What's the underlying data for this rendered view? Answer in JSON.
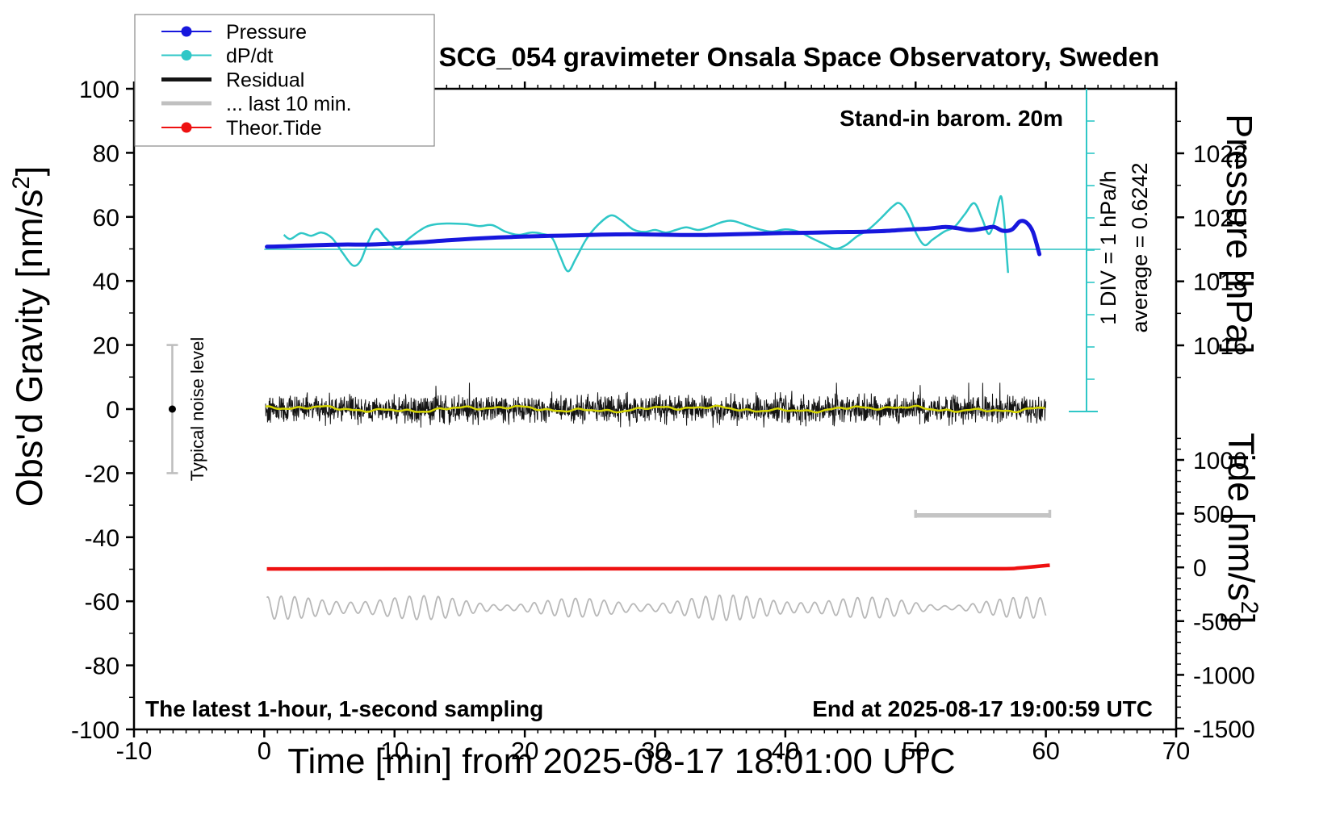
{
  "figure": {
    "background": "#ffffff"
  },
  "title": "SCG_054 gravimeter Onsala Space Observatory, Sweden",
  "annotations": {
    "stand_in": "Stand-in barom. 20m",
    "bottom_left": "The latest 1-hour, 1-second sampling",
    "bottom_right": "End at 2025-08-17 19:00:59 UTC",
    "noise_label": "Typical noise level"
  },
  "legend": {
    "items": [
      {
        "label": "Pressure",
        "color": "#1717dd",
        "style": "thin-dot"
      },
      {
        "label": "dP/dt",
        "color": "#2fc7c7",
        "style": "thin-dot"
      },
      {
        "label": "Residual",
        "color": "#141414",
        "style": "thick"
      },
      {
        "label": "... last 10 min.",
        "color": "#c0c0c0",
        "style": "thick"
      },
      {
        "label": "Theor.Tide",
        "color": "#ee1111",
        "style": "thin-dot"
      }
    ]
  },
  "axes": {
    "x": {
      "label": "Time [min] from 2025-08-17 18:01:00 UTC",
      "min": -10,
      "max": 70,
      "ticks": [
        -10,
        0,
        10,
        20,
        30,
        40,
        50,
        60,
        70
      ],
      "minor_step": 1
    },
    "gravity": {
      "label_parts": {
        "pre": "Obs'd Gravity [nm/s",
        "sup": "2",
        "post": "]"
      },
      "min": -100,
      "max": 100,
      "ticks": [
        -100,
        -80,
        -60,
        -40,
        -20,
        0,
        20,
        40,
        60,
        80,
        100
      ],
      "minor_step": 10
    },
    "pressure": {
      "label": "Pressure [hPa]",
      "ticks": [
        1016,
        1018,
        1020,
        1022
      ],
      "minor_step": 1,
      "minor_from": 1015,
      "minor_to": 1023
    },
    "tide": {
      "label_parts": {
        "pre": "Tide [nm/s",
        "sup": "2",
        "post": "]"
      },
      "ticks": [
        -1500,
        -1000,
        -500,
        0,
        500,
        1000
      ],
      "minor_step": 100,
      "minor_from": -1500,
      "minor_to": 1200
    },
    "dpdt": {
      "div_text": "1 DIV = 1 hPa/h",
      "avg_text": "average = 0.6242",
      "average": 0.6242
    }
  },
  "chart_data": {
    "type": "line",
    "x_unit": "min",
    "series": [
      {
        "name": "pressure",
        "axis": "pressure_hPa",
        "color": "#1717dd",
        "width": 5,
        "points": [
          [
            0.2,
            1019.08
          ],
          [
            2,
            1019.1
          ],
          [
            4,
            1019.13
          ],
          [
            6,
            1019.15
          ],
          [
            8,
            1019.15
          ],
          [
            10,
            1019.18
          ],
          [
            12,
            1019.22
          ],
          [
            14,
            1019.28
          ],
          [
            16,
            1019.33
          ],
          [
            18,
            1019.37
          ],
          [
            20,
            1019.4
          ],
          [
            22,
            1019.42
          ],
          [
            24,
            1019.44
          ],
          [
            26,
            1019.46
          ],
          [
            28,
            1019.47
          ],
          [
            30,
            1019.46
          ],
          [
            32,
            1019.45
          ],
          [
            34,
            1019.45
          ],
          [
            36,
            1019.47
          ],
          [
            38,
            1019.49
          ],
          [
            40,
            1019.51
          ],
          [
            42,
            1019.52
          ],
          [
            44,
            1019.54
          ],
          [
            46,
            1019.55
          ],
          [
            48,
            1019.58
          ],
          [
            49.5,
            1019.62
          ],
          [
            51,
            1019.65
          ],
          [
            52.3,
            1019.7
          ],
          [
            53.2,
            1019.66
          ],
          [
            54.2,
            1019.6
          ],
          [
            55.2,
            1019.65
          ],
          [
            56.0,
            1019.7
          ],
          [
            56.7,
            1019.58
          ],
          [
            57.4,
            1019.62
          ],
          [
            58.0,
            1019.87
          ],
          [
            58.5,
            1019.84
          ],
          [
            59.0,
            1019.55
          ],
          [
            59.5,
            1018.85
          ]
        ]
      },
      {
        "name": "dpdt",
        "axis": "hPa_per_h",
        "color": "#2fc7c7",
        "width": 2.5,
        "points": [
          [
            1.5,
            0.45
          ],
          [
            2.0,
            0.32
          ],
          [
            2.8,
            0.5
          ],
          [
            3.6,
            0.42
          ],
          [
            4.4,
            0.52
          ],
          [
            5.2,
            0.35
          ],
          [
            6.0,
            -0.1
          ],
          [
            6.8,
            -0.5
          ],
          [
            7.4,
            -0.35
          ],
          [
            8.0,
            0.25
          ],
          [
            8.6,
            0.63
          ],
          [
            9.3,
            0.35
          ],
          [
            10.2,
            0.02
          ],
          [
            11.0,
            0.3
          ],
          [
            12.0,
            0.6
          ],
          [
            12.8,
            0.75
          ],
          [
            14,
            0.8
          ],
          [
            15.5,
            0.78
          ],
          [
            16.5,
            0.72
          ],
          [
            17.5,
            0.75
          ],
          [
            18.5,
            0.55
          ],
          [
            19.5,
            0.45
          ],
          [
            20.5,
            0.52
          ],
          [
            21.3,
            0.48
          ],
          [
            22.1,
            0.35
          ],
          [
            22.7,
            -0.2
          ],
          [
            23.3,
            -0.68
          ],
          [
            23.9,
            -0.3
          ],
          [
            24.7,
            0.3
          ],
          [
            25.6,
            0.75
          ],
          [
            26.6,
            1.05
          ],
          [
            27.4,
            0.9
          ],
          [
            28.3,
            0.62
          ],
          [
            29.2,
            0.54
          ],
          [
            30,
            0.6
          ],
          [
            30.8,
            0.52
          ],
          [
            31.6,
            0.6
          ],
          [
            32.4,
            0.68
          ],
          [
            33.3,
            0.6
          ],
          [
            34.2,
            0.7
          ],
          [
            35.2,
            0.85
          ],
          [
            36,
            0.88
          ],
          [
            37,
            0.75
          ],
          [
            38,
            0.62
          ],
          [
            39,
            0.55
          ],
          [
            40,
            0.62
          ],
          [
            41,
            0.55
          ],
          [
            42,
            0.35
          ],
          [
            42.9,
            0.18
          ],
          [
            43.8,
            0.02
          ],
          [
            44.6,
            0.12
          ],
          [
            45.5,
            0.4
          ],
          [
            46.4,
            0.62
          ],
          [
            47.3,
            0.95
          ],
          [
            48.3,
            1.35
          ],
          [
            48.8,
            1.42
          ],
          [
            49.4,
            1.1
          ],
          [
            50.1,
            0.45
          ],
          [
            50.7,
            0.13
          ],
          [
            51.3,
            0.3
          ],
          [
            52.2,
            0.55
          ],
          [
            53.0,
            0.7
          ],
          [
            53.8,
            1.1
          ],
          [
            54.5,
            1.43
          ],
          [
            55.1,
            0.95
          ],
          [
            55.6,
            0.48
          ],
          [
            56.0,
            0.8
          ],
          [
            56.4,
            1.5
          ],
          [
            56.6,
            1.6
          ],
          [
            56.8,
            0.9
          ],
          [
            57.0,
            -0.2
          ],
          [
            57.1,
            -0.73
          ]
        ],
        "reference_line": {
          "value": 0,
          "t0": 0,
          "t1": 64.2
        },
        "scale_bar": {
          "divs": 10,
          "div_value_hPa_per_h": 1
        }
      },
      {
        "name": "residual",
        "axis": "gravity_nm_s2",
        "color": "#141414",
        "width": 1,
        "gen": {
          "t0": 0.1,
          "t1": 60.0,
          "step": 0.025,
          "center": 0,
          "sigma": 2.1,
          "spike_prob": 0.012,
          "spike_gain": 2.3,
          "clamp": 8.2,
          "seed": 42
        }
      },
      {
        "name": "residual_smoothed",
        "axis": "gravity_nm_s2",
        "color": "#d4d400",
        "width": 2.5,
        "gen": {
          "t0": 0.1,
          "t1": 60.0,
          "step": 0.15,
          "center": 0,
          "components": [
            [
              0.55,
              0.42,
              0.4
            ],
            [
              0.35,
              1.25,
              2.1
            ],
            [
              0.25,
              2.9,
              0.7
            ],
            [
              0.15,
              5.3,
              0.0
            ]
          ]
        }
      },
      {
        "name": "last_10_min_wave",
        "axis": "gravity_nm_s2",
        "color": "#b8b8b8",
        "width": 1.8,
        "gen": {
          "t0": 0.2,
          "t1": 60.0,
          "step": 0.05,
          "center": -62,
          "carrier_period": 1.08,
          "amp_base": 2.3,
          "amp_mod": [
            [
              1.15,
              0.55,
              1.0
            ],
            [
              0.55,
              0.21,
              0.0
            ]
          ],
          "phase_wobble": [
            0.8,
            0.33
          ]
        }
      },
      {
        "name": "theor_tide",
        "axis": "tide_nm_s2",
        "color": "#ee1111",
        "width": 4.5,
        "points": [
          [
            0.2,
            -14
          ],
          [
            15,
            -13.5
          ],
          [
            30,
            -13
          ],
          [
            45,
            -13
          ],
          [
            56,
            -13
          ],
          [
            58,
            -5
          ],
          [
            60.3,
            20
          ]
        ]
      }
    ],
    "last10_bar": {
      "t_start": 50.0,
      "t_end": 60.3,
      "gravity": -33.2
    },
    "noise_level_bar": {
      "t": -7.06,
      "center": 0,
      "half_range": 20
    }
  }
}
